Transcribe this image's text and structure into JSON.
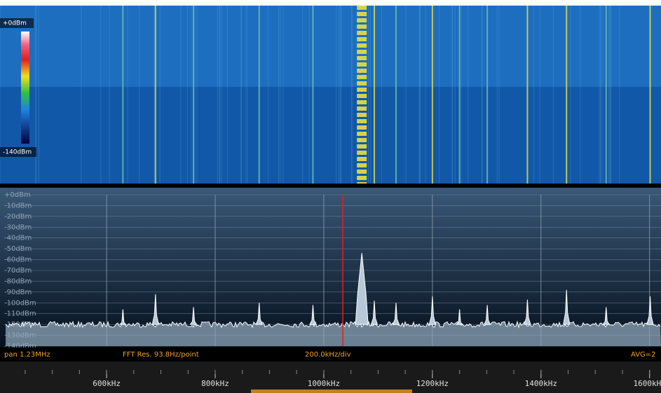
{
  "waterfall": {
    "scale_top": "+0dBm",
    "scale_bottom": "-140dBm"
  },
  "spectrum": {
    "ylim": [
      -140,
      0
    ],
    "yticks": [
      {
        "value": 0,
        "label": "+0dBm"
      },
      {
        "value": -10,
        "label": "-10dBm"
      },
      {
        "value": -20,
        "label": "-20dBm"
      },
      {
        "value": -30,
        "label": "-30dBm"
      },
      {
        "value": -40,
        "label": "-40dBm"
      },
      {
        "value": -50,
        "label": "-50dBm"
      },
      {
        "value": -60,
        "label": "-60dBm"
      },
      {
        "value": -70,
        "label": "-70dBm"
      },
      {
        "value": -80,
        "label": "-80dBm"
      },
      {
        "value": -90,
        "label": "-90dBm"
      },
      {
        "value": -100,
        "label": "-100dBm"
      },
      {
        "value": -110,
        "label": "-110dBm"
      },
      {
        "value": -120,
        "label": "-120dBm"
      },
      {
        "value": -130,
        "label": "-130dBm"
      },
      {
        "value": -140,
        "label": "-140dBm"
      }
    ],
    "xlim": [
      414,
      1621
    ],
    "xticks": [
      {
        "value": 600,
        "label": "600kHz"
      },
      {
        "value": 800,
        "label": "800kHz"
      },
      {
        "value": 1000,
        "label": "1000kHz"
      },
      {
        "value": 1200,
        "label": "1200kHz"
      },
      {
        "value": 1400,
        "label": "1400kHz"
      },
      {
        "value": 1600,
        "label": "1600kHz"
      }
    ],
    "marker": 1035,
    "noise_floor": -120,
    "peaks": [
      {
        "freq": 1070,
        "level": -54
      },
      {
        "freq": 690,
        "level": -92
      },
      {
        "freq": 881,
        "level": -100
      },
      {
        "freq": 980,
        "level": -102
      },
      {
        "freq": 1093,
        "level": -98
      },
      {
        "freq": 1133,
        "level": -100
      },
      {
        "freq": 1200,
        "level": -94
      },
      {
        "freq": 1301,
        "level": -102
      },
      {
        "freq": 1375,
        "level": -97
      },
      {
        "freq": 1447,
        "level": -88
      },
      {
        "freq": 1601,
        "level": -94
      },
      {
        "freq": 630,
        "level": -106
      },
      {
        "freq": 760,
        "level": -104
      },
      {
        "freq": 1250,
        "level": -106
      },
      {
        "freq": 1520,
        "level": -104
      }
    ]
  },
  "status": {
    "span": "pan 1.23MHz",
    "fft_res": "FFT Res. 93.8Hz/point",
    "div": "200.0kHz/div",
    "avg": "AVG=2"
  }
}
